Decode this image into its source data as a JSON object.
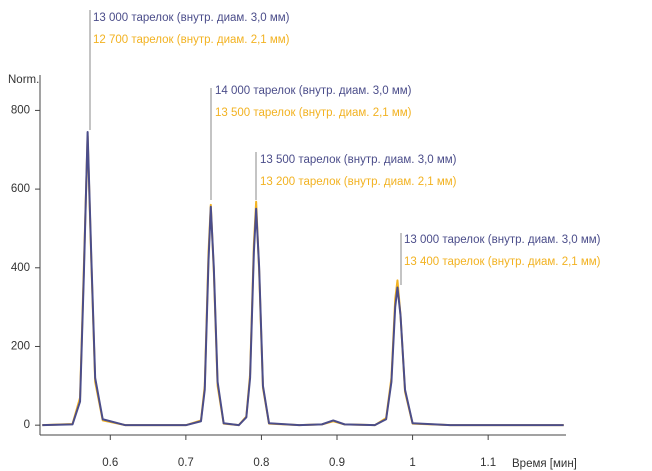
{
  "chart_data": {
    "type": "line",
    "y_axis_label": "Norm.",
    "x_axis_label": "Время [мин]",
    "x": [
      0.51,
      0.55,
      0.56,
      0.565,
      0.57,
      0.575,
      0.58,
      0.59,
      0.62,
      0.7,
      0.72,
      0.725,
      0.73,
      0.733,
      0.737,
      0.742,
      0.75,
      0.77,
      0.78,
      0.785,
      0.79,
      0.793,
      0.797,
      0.802,
      0.81,
      0.85,
      0.88,
      0.895,
      0.91,
      0.95,
      0.965,
      0.972,
      0.977,
      0.98,
      0.984,
      0.99,
      1.0,
      1.05,
      1.2
    ],
    "series": [
      {
        "name": "2,1 мм",
        "color": "#f2b221",
        "values": [
          0,
          3,
          70,
          400,
          735,
          410,
          110,
          12,
          0,
          0,
          12,
          100,
          440,
          560,
          390,
          100,
          4,
          0,
          22,
          130,
          460,
          568,
          390,
          95,
          4,
          0,
          2,
          10,
          2,
          0,
          18,
          120,
          320,
          368,
          280,
          85,
          4,
          0,
          0
        ]
      },
      {
        "name": "3,0 мм",
        "color": "#4b4d8a",
        "values": [
          0,
          2,
          60,
          380,
          745,
          420,
          120,
          15,
          0,
          0,
          10,
          90,
          420,
          555,
          400,
          110,
          5,
          0,
          20,
          120,
          440,
          550,
          400,
          100,
          5,
          0,
          2,
          12,
          2,
          0,
          15,
          110,
          300,
          350,
          280,
          90,
          5,
          0,
          0
        ]
      }
    ],
    "xlim": [
      0.507,
      1.203
    ],
    "ylim": [
      -25,
      890
    ],
    "xticks": [
      0.6,
      0.7,
      0.8,
      0.9,
      1.0,
      1.1
    ],
    "yticks": [
      0,
      200,
      400,
      600,
      800
    ],
    "annotations": [
      {
        "lines": [
          "13 000 тарелок (внутр. диам. 3,0 мм)",
          "12 700 тарелок (внутр. диам. 2,1 мм)"
        ]
      },
      {
        "lines": [
          "14 000 тарелок (внутр. диам. 3,0 мм)",
          "13 500 тарелок (внутр. диам. 2,1 мм)"
        ]
      },
      {
        "lines": [
          "13 500 тарелок (внутр. диам. 3,0 мм)",
          "13 200 тарелок (внутр. диам. 2,1 мм)"
        ]
      },
      {
        "lines": [
          "13 000 тарелок (внутр. диам. 3,0 мм)",
          "13 400 тарелок (внутр. диам. 2,1 мм)"
        ]
      }
    ]
  }
}
